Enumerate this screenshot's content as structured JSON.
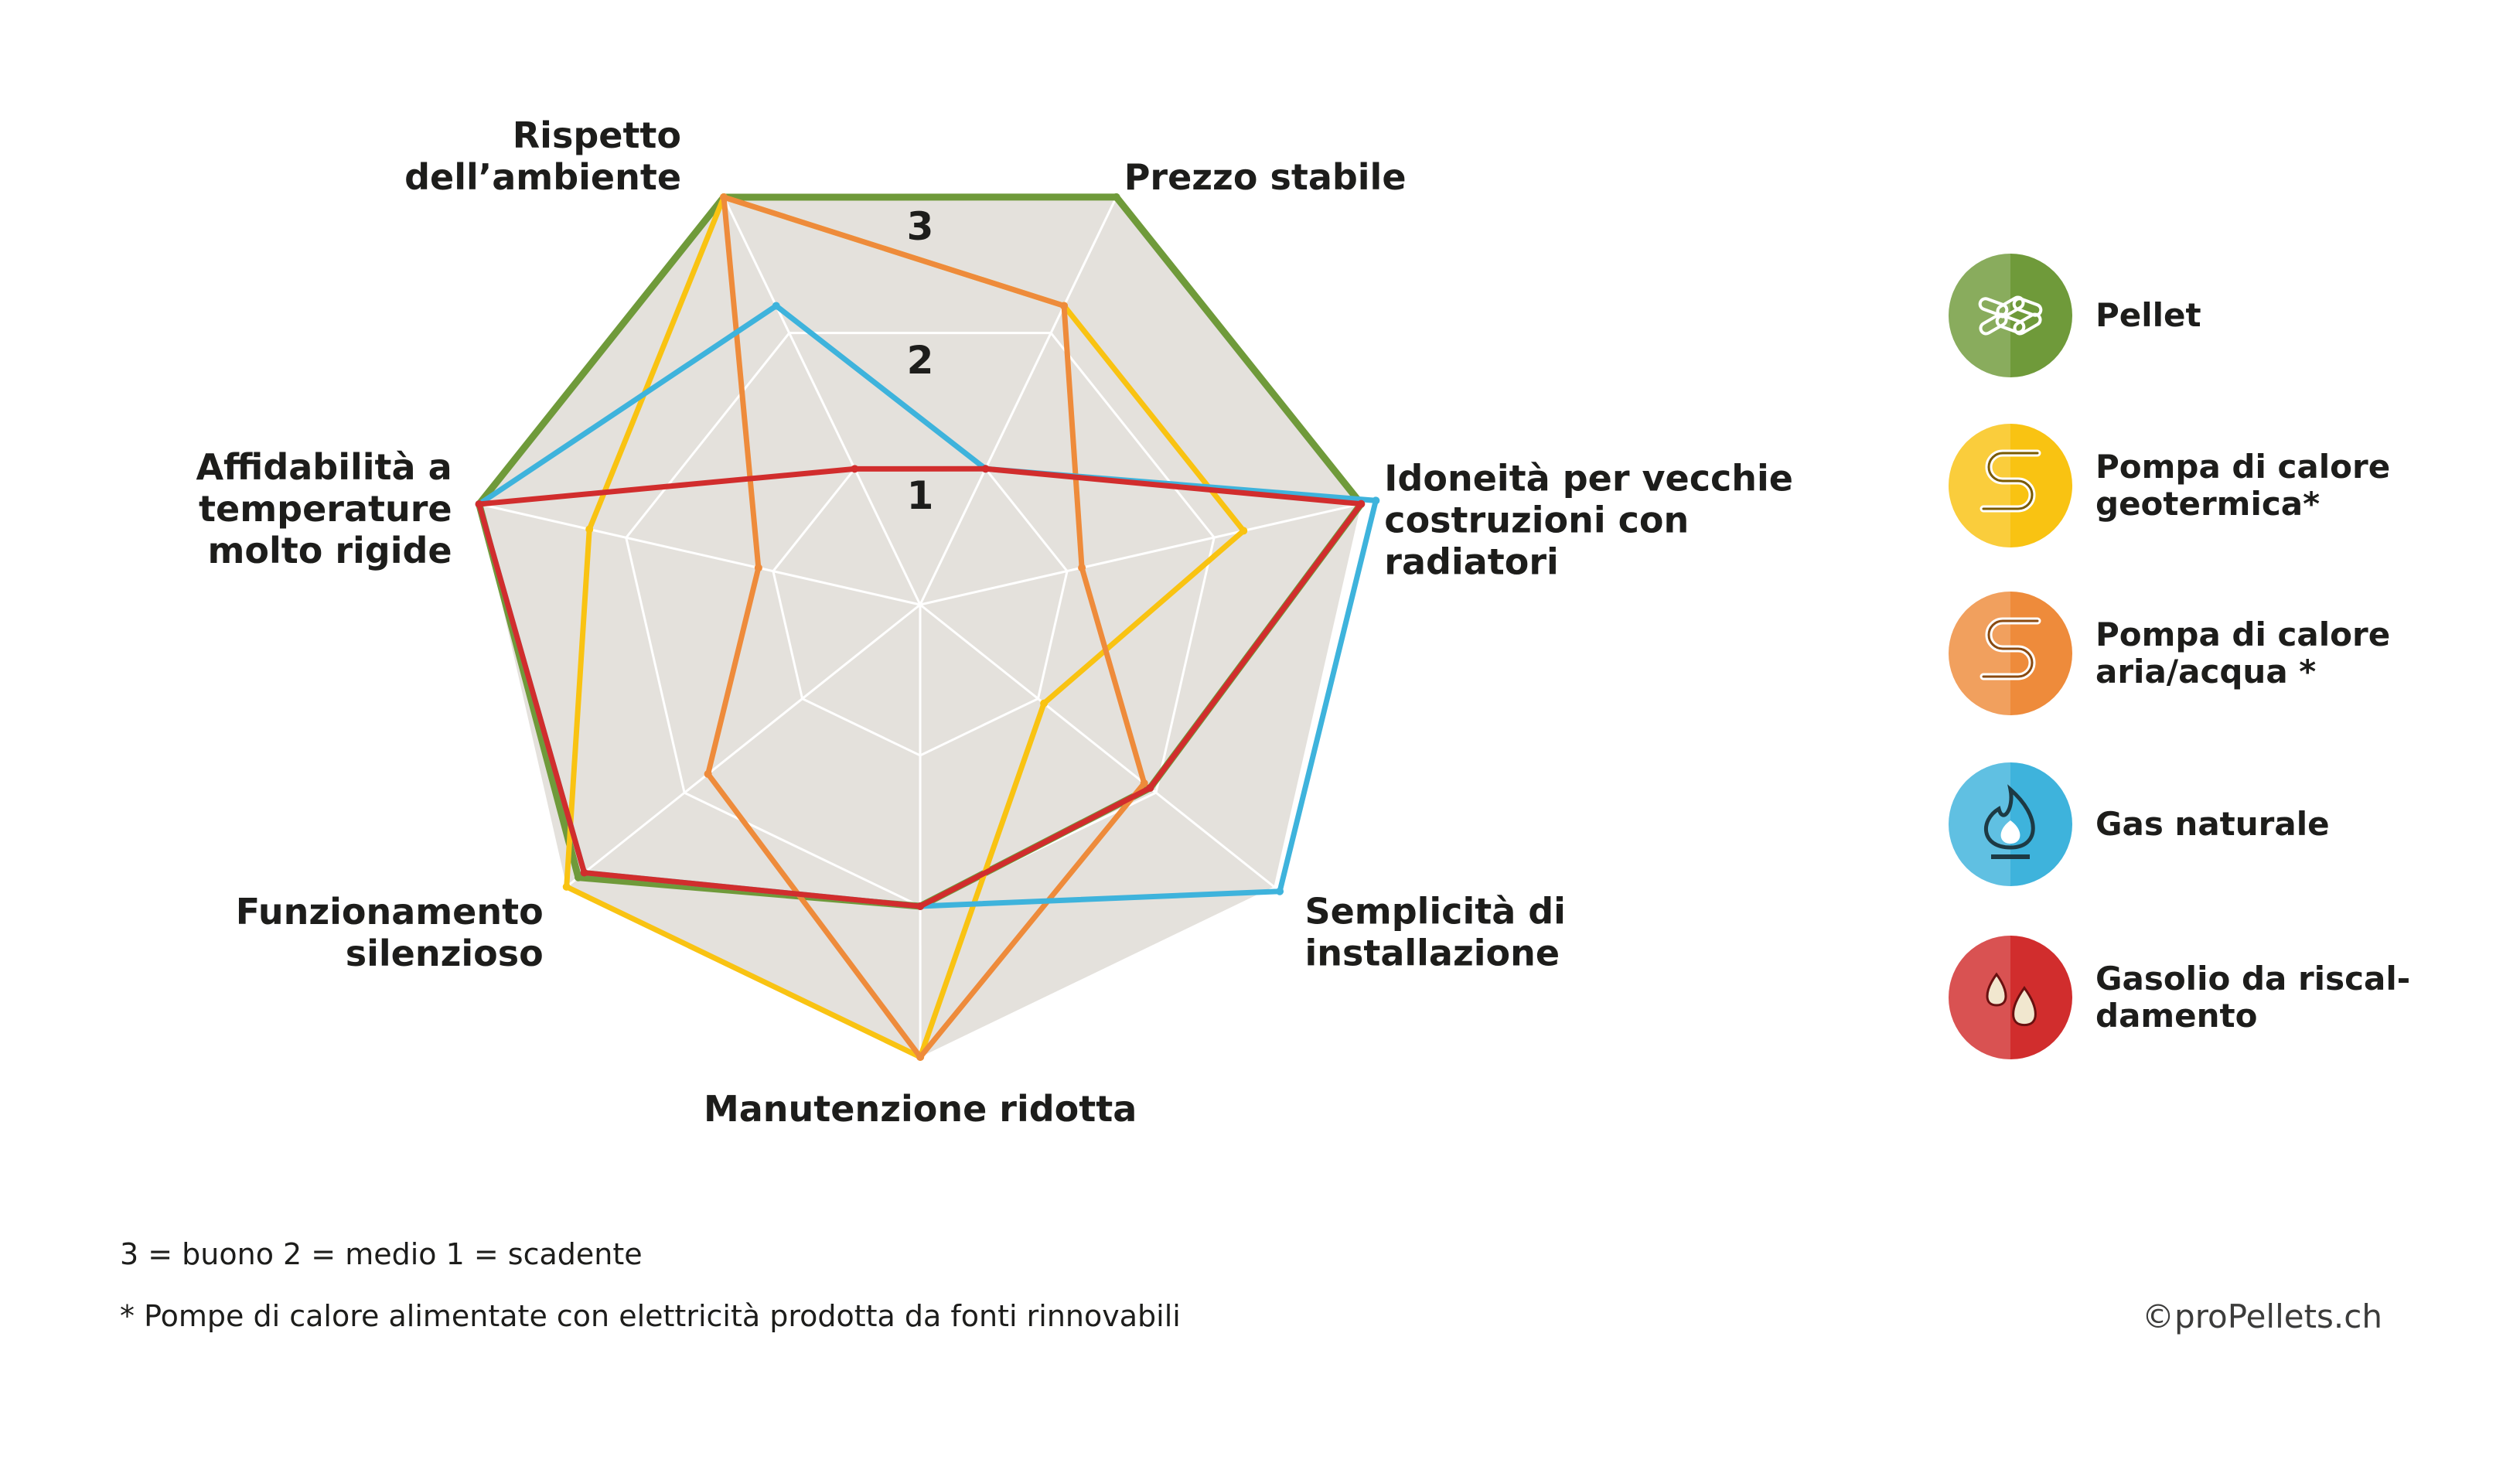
{
  "chart_data": {
    "type": "radar",
    "title": "",
    "axes": [
      [
        "Prezzo stabile"
      ],
      [
        "Idoneità per vecchie",
        "costruzioni con",
        "radiatori"
      ],
      [
        "Semplicità di",
        "installazione"
      ],
      [
        "Manutenzione ridotta"
      ],
      [
        "Funzionamento",
        "silenzioso"
      ],
      [
        "Affidabilità a",
        "temperature",
        "molto rigide"
      ],
      [
        "Rispetto",
        "dell’ambiente"
      ]
    ],
    "rlim": [
      0,
      3
    ],
    "ticks": [
      "1",
      "2",
      "3"
    ],
    "grid": true,
    "legend_position": "right",
    "series": [
      {
        "name": "Pellet",
        "color": "#6f9a3a",
        "icon": "pellet-icon",
        "values": [
          3,
          3,
          1.95,
          2.0,
          2.9,
          3,
          3
        ]
      },
      {
        "name": "Pompa di calore geotermica*",
        "color": "#f9c312",
        "icon": "geothermal-heat-pump-icon",
        "values": [
          2.2,
          2.2,
          1.05,
          3,
          3,
          2.25,
          3
        ]
      },
      {
        "name": "Pompa di calore aria/acqua *",
        "color": "#ee8b3b",
        "icon": "air-water-heat-pump-icon",
        "values": [
          2.2,
          1.1,
          1.9,
          3,
          1.8,
          1.1,
          3
        ]
      },
      {
        "name": "Gas naturale",
        "color": "#3eb3dc",
        "icon": "natural-gas-icon",
        "values": [
          1.0,
          3.1,
          3.05,
          2.0,
          2.85,
          3,
          2.2
        ]
      },
      {
        "name": "Gasolio da riscaldamento",
        "color": "#d12d2d",
        "icon": "heating-oil-icon",
        "values": [
          1.0,
          3,
          1.95,
          2.0,
          2.85,
          3,
          1.0
        ]
      }
    ],
    "legend_labels": [
      [
        "Pellet"
      ],
      [
        "Pompa di calore",
        "geotermica*"
      ],
      [
        "Pompa di calore",
        "aria/acqua *"
      ],
      [
        "Gas naturale"
      ],
      [
        "Gasolio da riscal-",
        "damento"
      ]
    ]
  },
  "notes": {
    "scale": "3 = buono     2 = medio     1 = scadente",
    "footnote": "* Pompe di calore alimentate con elettricità prodotta da fonti rinnovabili",
    "credit": "©proPellets.ch"
  }
}
